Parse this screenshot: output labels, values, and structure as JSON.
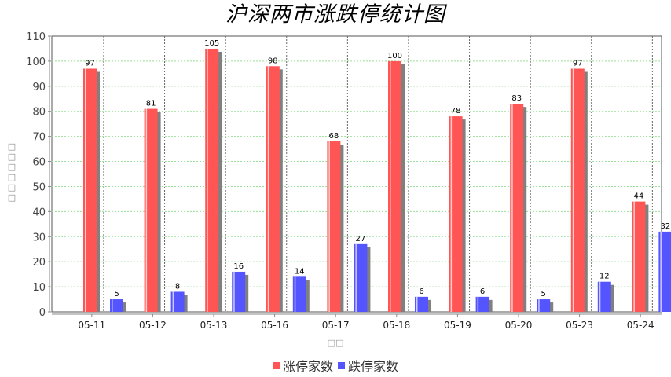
{
  "header": {
    "title": "沪深两市涨跌停统计图"
  },
  "axes": {
    "ylabel": "□□□□□□",
    "xlabel": "□□"
  },
  "legend": {
    "items": [
      {
        "label": "涨停家数",
        "color": "#ff5555"
      },
      {
        "label": "跌停家数",
        "color": "#5555ff"
      }
    ]
  },
  "colors": {
    "limit_up": "#ff5555",
    "limit_down": "#5555ff",
    "shadow": "#808080",
    "grid": "#9be09b",
    "category_divider": "#666666",
    "axis": "#888888"
  },
  "chart_data": {
    "type": "bar",
    "title": "沪深两市涨跌停统计图",
    "xlabel": "□□",
    "ylabel": "□□□□□□",
    "categories": [
      "05-11",
      "05-12",
      "05-13",
      "05-16",
      "05-17",
      "05-18",
      "05-19",
      "05-20",
      "05-23",
      "05-24"
    ],
    "series": [
      {
        "name": "涨停家数",
        "color": "#ff5555",
        "values": [
          97,
          81,
          105,
          98,
          68,
          100,
          78,
          83,
          97,
          44
        ]
      },
      {
        "name": "跌停家数",
        "color": "#5555ff",
        "values": [
          5,
          8,
          16,
          14,
          27,
          6,
          6,
          5,
          12,
          32
        ]
      }
    ],
    "ylim": [
      0,
      110
    ],
    "yticks": [
      0,
      10,
      20,
      30,
      40,
      50,
      60,
      70,
      80,
      90,
      100,
      110
    ],
    "grid": true,
    "legend_position": "bottom",
    "data_labels": true
  }
}
